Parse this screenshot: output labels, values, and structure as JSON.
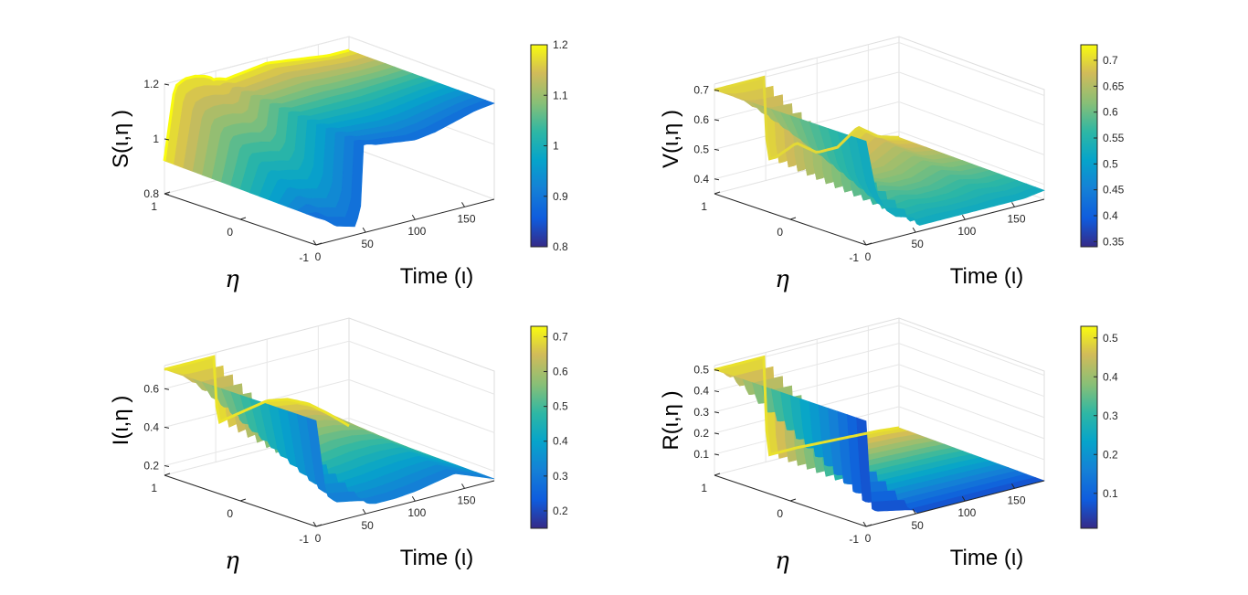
{
  "chart_data": [
    {
      "type": "surface",
      "zlabel": "S(ι,η )",
      "xlabel": "Time (ι)",
      "ylabel": "η",
      "x_ticks": [
        "0",
        "50",
        "100",
        "150"
      ],
      "y_ticks": [
        "1",
        "0",
        "-1"
      ],
      "z_ticks": [
        "1.2",
        "1",
        "0.8"
      ],
      "zlim": [
        0.8,
        1.2
      ],
      "colorbar": {
        "min": 0.8,
        "max": 1.2,
        "ticks": [
          "1.2",
          "1.1",
          "1",
          "0.9",
          "0.8"
        ]
      },
      "profile_t": [
        0,
        10,
        20,
        30,
        40,
        45,
        48,
        52,
        60,
        80,
        100,
        120,
        140,
        160,
        180
      ],
      "profile_front_z": [
        0.9,
        0.88,
        0.85,
        0.84,
        0.83,
        0.9,
        1.12,
        1.12,
        1.11,
        1.1,
        1.09,
        1.1,
        1.12,
        1.14,
        1.15
      ],
      "profile_back_z": [
        0.92,
        1.18,
        1.2,
        1.2,
        1.19,
        1.18,
        1.17,
        1.17,
        1.16,
        1.17,
        1.18,
        1.17,
        1.16,
        1.15,
        1.15
      ]
    },
    {
      "type": "surface",
      "zlabel": "V(ι,η )",
      "xlabel": "Time (ι)",
      "ylabel": "η",
      "x_ticks": [
        "0",
        "50",
        "100",
        "150"
      ],
      "y_ticks": [
        "1",
        "0",
        "-1"
      ],
      "z_ticks": [
        "0.7",
        "0.6",
        "0.5",
        "0.4"
      ],
      "zlim": [
        0.35,
        0.72
      ],
      "colorbar": {
        "min": 0.34,
        "max": 0.73,
        "ticks": [
          "0.7",
          "0.65",
          "0.6",
          "0.55",
          "0.5",
          "0.45",
          "0.4",
          "0.35"
        ]
      },
      "profile_t": [
        0,
        10,
        20,
        30,
        40,
        48,
        52,
        60,
        80,
        100,
        120,
        140,
        160,
        180
      ],
      "profile_front_z": [
        0.7,
        0.52,
        0.45,
        0.42,
        0.41,
        0.4,
        0.37,
        0.37,
        0.37,
        0.37,
        0.37,
        0.37,
        0.37,
        0.38
      ],
      "profile_back_z": [
        0.7,
        0.7,
        0.7,
        0.7,
        0.7,
        0.7,
        0.42,
        0.42,
        0.45,
        0.4,
        0.4,
        0.45,
        0.4,
        0.38
      ]
    },
    {
      "type": "surface",
      "zlabel": "I(ι,η )",
      "xlabel": "Time (ι)",
      "ylabel": "η",
      "x_ticks": [
        "0",
        "50",
        "100",
        "150"
      ],
      "y_ticks": [
        "1",
        "0",
        "-1"
      ],
      "z_ticks": [
        "0.6",
        "0.4",
        "0.2"
      ],
      "zlim": [
        0.15,
        0.72
      ],
      "colorbar": {
        "min": 0.15,
        "max": 0.73,
        "ticks": [
          "0.7",
          "0.6",
          "0.5",
          "0.4",
          "0.3",
          "0.2"
        ]
      },
      "profile_t": [
        0,
        10,
        20,
        30,
        40,
        48,
        52,
        60,
        80,
        100,
        120,
        140,
        160,
        180
      ],
      "profile_front_z": [
        0.7,
        0.3,
        0.25,
        0.24,
        0.23,
        0.22,
        0.2,
        0.19,
        0.19,
        0.2,
        0.22,
        0.24,
        0.2,
        0.16
      ],
      "profile_back_z": [
        0.7,
        0.7,
        0.7,
        0.7,
        0.7,
        0.7,
        0.35,
        0.36,
        0.38,
        0.4,
        0.38,
        0.33,
        0.25,
        0.16
      ]
    },
    {
      "type": "surface",
      "zlabel": "R(ι,η )",
      "xlabel": "Time (ι)",
      "ylabel": "η",
      "x_ticks": [
        "0",
        "50",
        "100",
        "150"
      ],
      "y_ticks": [
        "1",
        "0",
        "-1"
      ],
      "z_ticks": [
        "0.5",
        "0.4",
        "0.3",
        "0.2",
        "0.1"
      ],
      "zlim": [
        0.0,
        0.52
      ],
      "colorbar": {
        "min": 0.01,
        "max": 0.53,
        "ticks": [
          "0.5",
          "0.4",
          "0.3",
          "0.2",
          "0.1"
        ]
      },
      "profile_t": [
        0,
        5,
        10,
        20,
        30,
        40,
        48,
        52,
        80,
        120,
        160,
        180
      ],
      "profile_front_z": [
        0.5,
        0.08,
        0.06,
        0.05,
        0.04,
        0.03,
        0.02,
        0.0,
        0.0,
        0.0,
        0.0,
        0.0
      ],
      "profile_back_z": [
        0.5,
        0.5,
        0.5,
        0.5,
        0.5,
        0.5,
        0.5,
        0.03,
        0.03,
        0.02,
        0.01,
        0.0
      ]
    }
  ]
}
